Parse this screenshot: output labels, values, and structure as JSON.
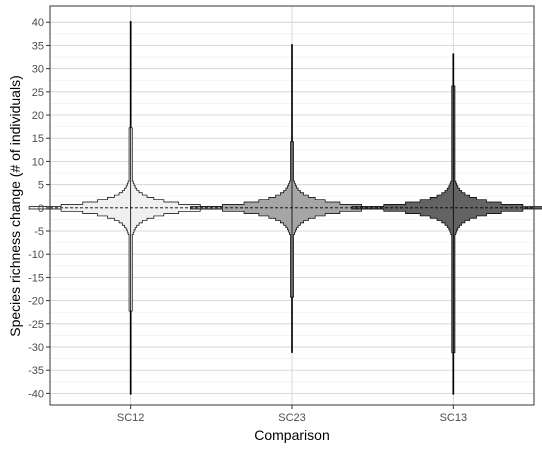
{
  "chart_data": {
    "type": "violin",
    "title": "",
    "xlabel": "Comparison",
    "ylabel": "Species richness change (# of individuals)",
    "categories": [
      "SC12",
      "SC23",
      "SC13"
    ],
    "ylim": [
      -42.5,
      43.5
    ],
    "yticks": [
      -40,
      -35,
      -30,
      -25,
      -20,
      -15,
      -10,
      -5,
      0,
      5,
      10,
      15,
      20,
      25,
      30,
      35,
      40
    ],
    "grid": true,
    "legend": "none",
    "fill_colors": [
      "#f0f0f0",
      "#a6a6a6",
      "#636363"
    ],
    "outline_color": "#000000",
    "series": [
      {
        "category": "SC12",
        "min": -40,
        "max": 40,
        "core_max": 17,
        "core_min": -22,
        "density_peak": 0
      },
      {
        "category": "SC23",
        "min": -31,
        "max": 35,
        "core_max": 14,
        "core_min": -19,
        "density_peak": 0
      },
      {
        "category": "SC13",
        "min": -40,
        "max": 33,
        "core_max": 26,
        "core_min": -31,
        "density_peak": 0
      }
    ]
  }
}
